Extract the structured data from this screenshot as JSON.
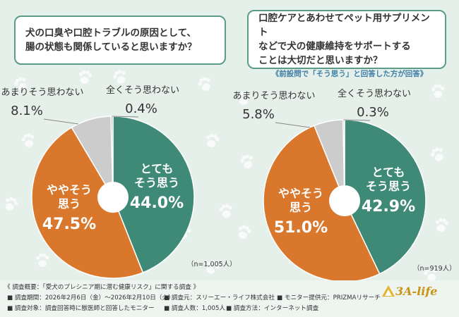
{
  "questions": {
    "q1": [
      "犬の口臭や口腔トラブルの原因として、",
      "腸の状態も関係していると思いますか？"
    ],
    "q2": [
      "口腔ケアとあわせてペット用サプリメント",
      "などで犬の健康維持をサポートする",
      "ことは大切だと思いますか？"
    ],
    "note": "《前設問で「そう思う」と回答した方が回答》"
  },
  "chart_data": [
    {
      "type": "pie",
      "categories": [
        "とてもそう思う",
        "ややそう思う",
        "あまりそう思わない",
        "全くそう思わない"
      ],
      "values": [
        44.0,
        47.5,
        8.1,
        0.4
      ],
      "colors": [
        "#3f8a77",
        "#d9782d",
        "#cccccc",
        "#bdbdbd"
      ],
      "n_label": "（n=1,005人）"
    },
    {
      "type": "pie",
      "categories": [
        "とてもそう思う",
        "ややそう思う",
        "あまりそう思わない",
        "全くそう思わない"
      ],
      "values": [
        42.9,
        51.0,
        5.8,
        0.3
      ],
      "colors": [
        "#3f8a77",
        "#d9782d",
        "#cccccc",
        "#bdbdbd"
      ],
      "n_label": "（n=919人）"
    }
  ],
  "labels": {
    "very_line1": "とても",
    "very_line2": "そう思う",
    "some_line1": "ややそう",
    "some_line2": "思う",
    "not_much": "あまりそう思わない",
    "not_at_all": "全くそう思わない",
    "pct_values": [
      [
        "44.0%",
        "47.5%",
        "8.1%",
        "0.4%"
      ],
      [
        "42.9%",
        "51.0%",
        "5.8%",
        "0.3%"
      ]
    ]
  },
  "footer": {
    "title": "《 調査概要：「愛犬のプレシニア期に潜む健康リスク」に関する調査 》",
    "period": "■ 調査期間：2026年2月6日（金）～2026年2月10日（火）",
    "source": "■ 調査元：スリーエー・ライフ株式会社",
    "provider": "■ モニター提供元：PRIZMAリサーチ",
    "target": "■ 調査対象：調査回答時に獣医師と回答したモニター",
    "count": "■ 調査人数：1,005人",
    "method": "■ 調査方法：インターネット調査"
  },
  "logo": "3A-life"
}
